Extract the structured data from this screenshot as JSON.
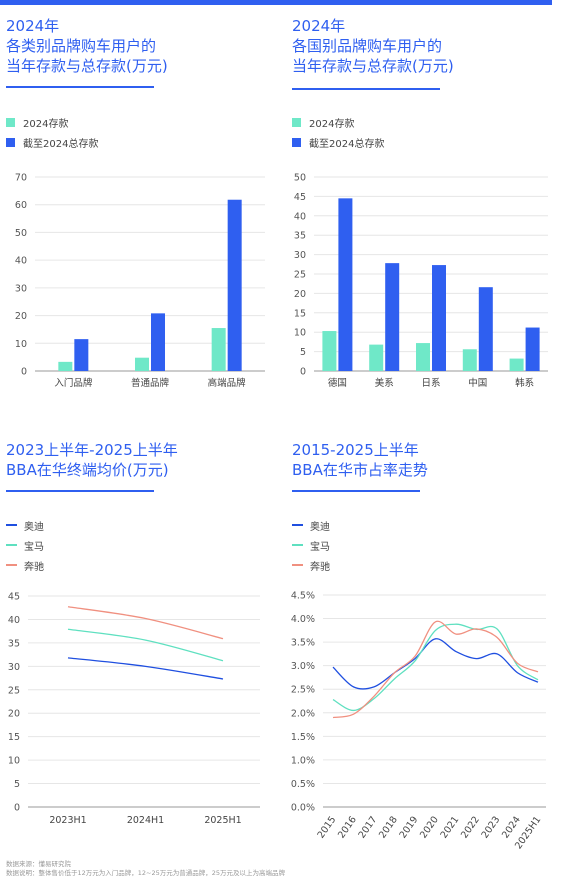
{
  "footer": {
    "source": "数据来源：懂易研究院",
    "note": "数据说明：整体售价低于12万元为入门品牌，12~25万元为普通品牌，25万元及以上为高端品牌"
  },
  "colors": {
    "accent": "#2f5ff0",
    "stock2024": "#6fe8c8",
    "total": "#2f5ff0",
    "audi": "#1f4fe0",
    "bmw": "#5fe0c0",
    "benz": "#f09080"
  },
  "chart_data": [
    {
      "type": "bar",
      "title": "2024年\n各类别品牌购车用户的\n当年存款与总存款(万元)",
      "categories": [
        "入门品牌",
        "普通品牌",
        "高端品牌"
      ],
      "series": [
        {
          "name": "2024存款",
          "values": [
            3.3,
            4.8,
            15.5
          ]
        },
        {
          "name": "截至2024总存款",
          "values": [
            11.5,
            20.8,
            61.8
          ]
        }
      ],
      "yticks": [
        "0",
        "10",
        "20",
        "30",
        "40",
        "50",
        "60",
        "70"
      ],
      "ylim": [
        0,
        70
      ]
    },
    {
      "type": "bar",
      "title": "2024年\n各国别品牌购车用户的\n当年存款与总存款(万元)",
      "categories": [
        "德国",
        "美系",
        "日系",
        "中国",
        "韩系"
      ],
      "series": [
        {
          "name": "2024存款",
          "values": [
            10.3,
            6.8,
            7.2,
            5.6,
            3.2
          ]
        },
        {
          "name": "截至2024总存款",
          "values": [
            44.5,
            27.8,
            27.3,
            21.6,
            11.2
          ]
        }
      ],
      "yticks": [
        "0",
        "5",
        "10",
        "15",
        "20",
        "25",
        "30",
        "35",
        "40",
        "45",
        "50"
      ],
      "ylim": [
        0,
        50
      ]
    },
    {
      "type": "line",
      "title": "2023上半年-2025上半年\nBBA在华终端均价(万元)",
      "x": [
        "2023H1",
        "2024H1",
        "2025H1"
      ],
      "series": [
        {
          "name": "奥迪",
          "values": [
            31.8,
            30.0,
            27.3
          ]
        },
        {
          "name": "宝马",
          "values": [
            37.9,
            35.6,
            31.2
          ]
        },
        {
          "name": "奔驰",
          "values": [
            42.7,
            40.2,
            35.9
          ]
        }
      ],
      "yticks": [
        "0",
        "5",
        "10",
        "15",
        "20",
        "25",
        "30",
        "35",
        "40",
        "45"
      ],
      "ylim": [
        0,
        45
      ]
    },
    {
      "type": "line",
      "title": "2015-2025上半年\nBBA在华市占率走势",
      "x": [
        "2015",
        "2016",
        "2017",
        "2018",
        "2019",
        "2020",
        "2021",
        "2022",
        "2023",
        "2024",
        "2025H1"
      ],
      "series": [
        {
          "name": "奥迪",
          "values": [
            2.97,
            2.55,
            2.55,
            2.85,
            3.15,
            3.57,
            3.3,
            3.15,
            3.25,
            2.85,
            2.65
          ]
        },
        {
          "name": "宝马",
          "values": [
            2.28,
            2.05,
            2.3,
            2.72,
            3.1,
            3.75,
            3.88,
            3.77,
            3.78,
            3.0,
            2.7
          ]
        },
        {
          "name": "奔驰",
          "values": [
            1.9,
            1.97,
            2.35,
            2.85,
            3.2,
            3.93,
            3.67,
            3.78,
            3.6,
            3.05,
            2.87
          ]
        }
      ],
      "yticks": [
        "0.0%",
        "0.5%",
        "1.0%",
        "1.5%",
        "2.0%",
        "2.5%",
        "3.0%",
        "3.5%",
        "4.0%",
        "4.5%"
      ],
      "ylim": [
        0,
        4.5
      ]
    }
  ]
}
